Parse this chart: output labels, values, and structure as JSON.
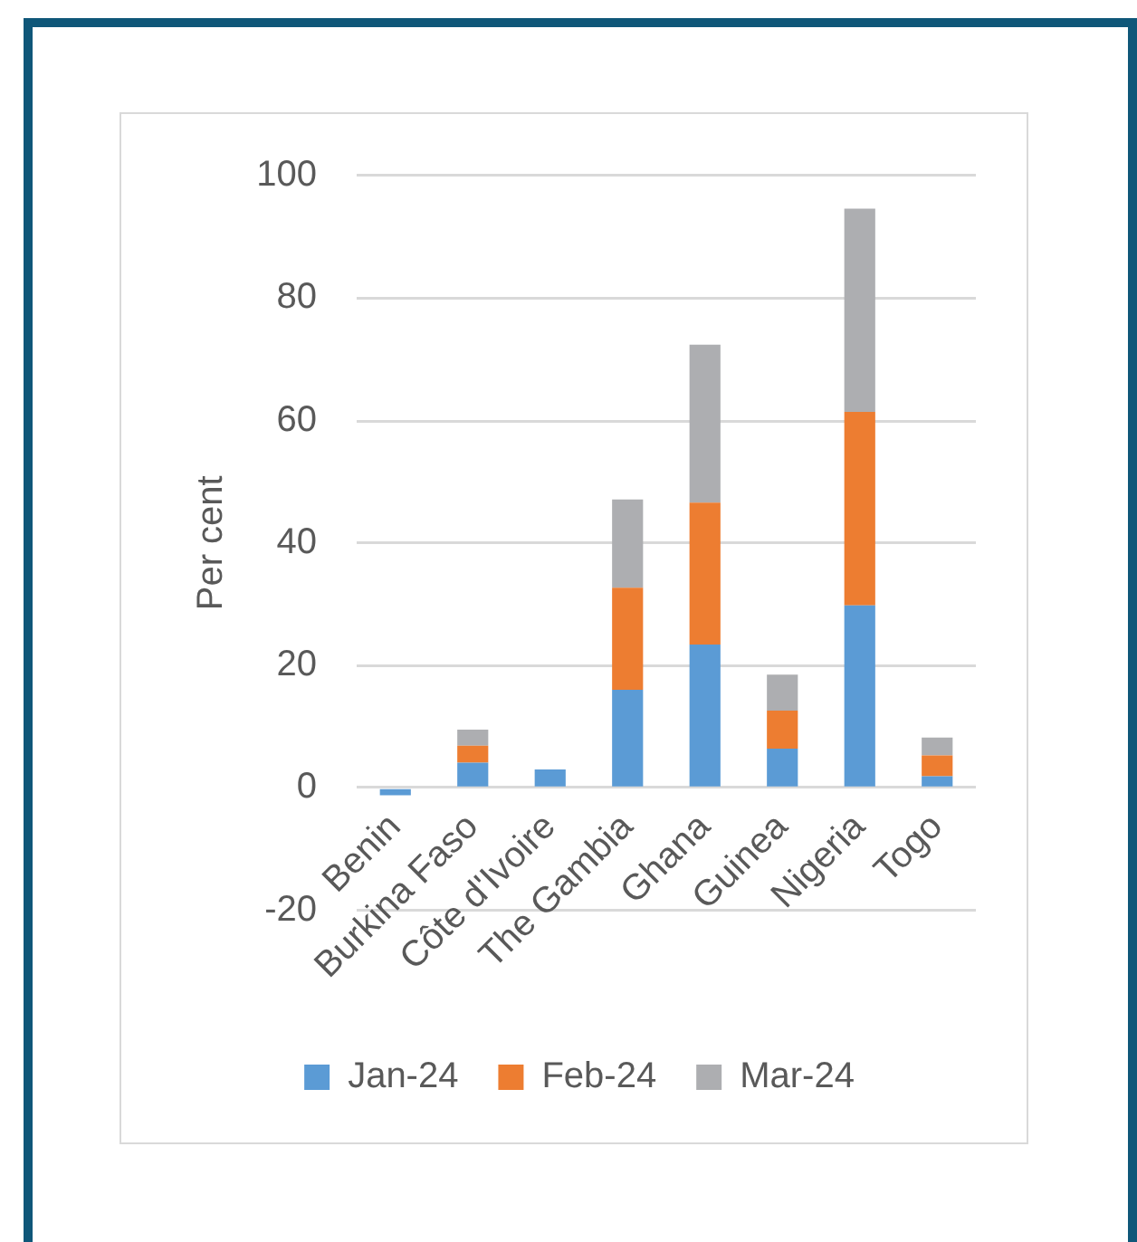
{
  "chart_data": {
    "type": "bar",
    "ylabel": "Per cent",
    "categories": [
      "Benin",
      "Burkina Faso",
      "Côte d'Ivoire",
      "The Gambia",
      "Ghana",
      "Guinea",
      "Nigeria",
      "Togo"
    ],
    "series": [
      {
        "name": "Jan-24",
        "color": "#5b9bd5",
        "values": [
          -1.2,
          4.1,
          3.0,
          16.0,
          23.4,
          6.4,
          29.8,
          1.9
        ]
      },
      {
        "name": "Feb-24",
        "color": "#ed7d31",
        "values": [
          null,
          2.8,
          null,
          16.7,
          23.2,
          6.2,
          31.6,
          3.4
        ]
      },
      {
        "name": "Mar-24",
        "color": "#adaeb1",
        "values": [
          null,
          2.6,
          null,
          14.4,
          25.8,
          5.9,
          33.2,
          2.9
        ]
      }
    ],
    "stacked": true,
    "ylim": [
      -20,
      100
    ],
    "yticks": [
      -20,
      0,
      20,
      40,
      60,
      80,
      100
    ],
    "grid": "y",
    "legend": "bottom"
  }
}
